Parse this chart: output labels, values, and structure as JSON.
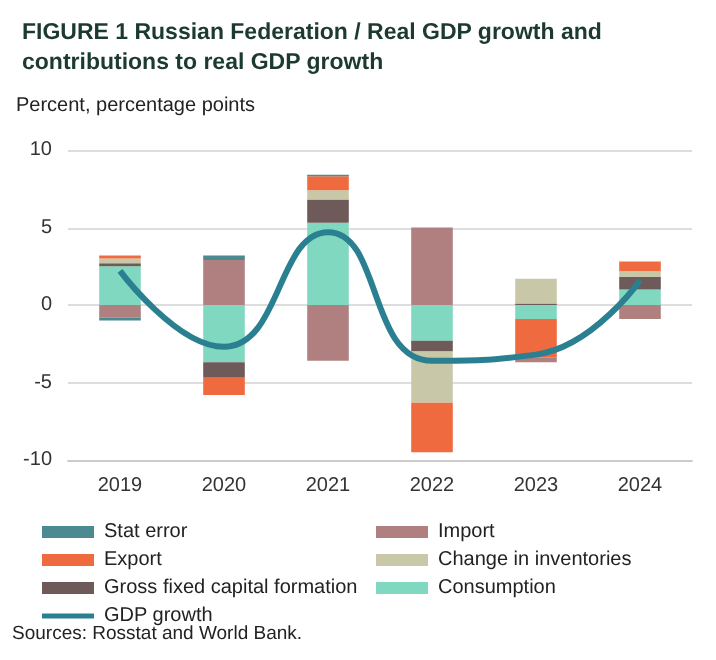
{
  "chart_data": {
    "type": "bar",
    "title": "FIGURE 1 Russian Federation / Real GDP growth and contributions to real GDP growth",
    "ylabel": "Percent, percentage points",
    "annotations": [
      "Sources: Rosstat and World Bank."
    ],
    "categories": [
      "2019",
      "2020",
      "2021",
      "2022",
      "2023",
      "2024"
    ],
    "stacked": true,
    "series": [
      {
        "name": "Consumption",
        "color": "#80d8c0",
        "values": [
          2.5,
          -3.7,
          5.3,
          -2.3,
          -0.9,
          1.0
        ]
      },
      {
        "name": "Gross fixed capital formation",
        "color": "#6e5a58",
        "values": [
          0.2,
          -1.0,
          1.5,
          -0.7,
          0.1,
          0.8
        ]
      },
      {
        "name": "Change in inventories",
        "color": "#c8c8a8",
        "values": [
          0.3,
          null,
          0.6,
          -3.3,
          1.6,
          0.4
        ]
      },
      {
        "name": "Export",
        "color": "#f06a40",
        "values": [
          0.2,
          -1.1,
          0.9,
          -3.2,
          -2.5,
          0.6
        ]
      },
      {
        "name": "Import",
        "color": "#b08080",
        "values": [
          -0.8,
          2.9,
          -3.6,
          5.0,
          -0.3,
          -0.9
        ]
      },
      {
        "name": "Stat error",
        "color": "#4a8a90",
        "values": [
          -0.2,
          0.3,
          0.1,
          null,
          null,
          null
        ]
      },
      {
        "name": "GDP growth",
        "type": "line",
        "color": "#2a8090",
        "values": [
          2.2,
          -2.7,
          4.7,
          -3.6,
          -3.2,
          1.6
        ]
      }
    ],
    "ylim": [
      -10,
      10
    ],
    "yticks": [
      -10,
      -5,
      0,
      5,
      10
    ],
    "grid": "y",
    "legend": "bottom",
    "marker": "none",
    "line_style": "solid"
  }
}
